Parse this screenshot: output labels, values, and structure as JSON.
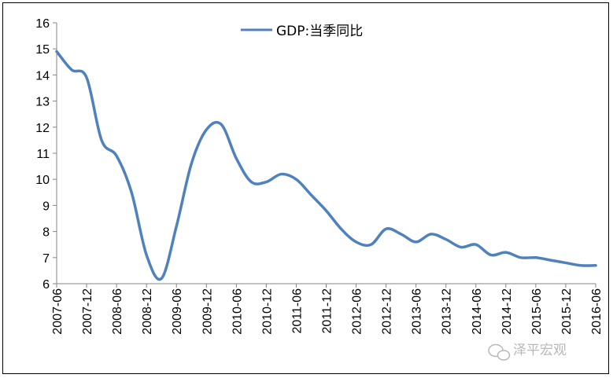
{
  "chart_data": {
    "type": "line",
    "title": "",
    "xlabel": "",
    "ylabel": "",
    "ylim": [
      6,
      16
    ],
    "yticks": [
      6,
      7,
      8,
      9,
      10,
      11,
      12,
      13,
      14,
      15,
      16
    ],
    "xtick_labels": [
      "2007-06",
      "2007-12",
      "2008-06",
      "2008-12",
      "2009-06",
      "2009-12",
      "2010-06",
      "2010-12",
      "2011-06",
      "2011-12",
      "2012-06",
      "2012-12",
      "2013-06",
      "2013-12",
      "2014-06",
      "2014-12",
      "2015-06",
      "2015-12",
      "2016-06"
    ],
    "grid": false,
    "legend_position": "top-center",
    "series": [
      {
        "name": "GDP:当季同比",
        "color": "#4f81bd",
        "x": [
          "2007-06",
          "2007-09",
          "2007-12",
          "2008-03",
          "2008-06",
          "2008-09",
          "2008-12",
          "2009-03",
          "2009-06",
          "2009-09",
          "2009-12",
          "2010-03",
          "2010-06",
          "2010-09",
          "2010-12",
          "2011-03",
          "2011-06",
          "2011-09",
          "2011-12",
          "2012-03",
          "2012-06",
          "2012-09",
          "2012-12",
          "2013-03",
          "2013-06",
          "2013-09",
          "2013-12",
          "2014-03",
          "2014-06",
          "2014-09",
          "2014-12",
          "2015-03",
          "2015-06",
          "2015-09",
          "2015-12",
          "2016-03",
          "2016-06"
        ],
        "values": [
          14.9,
          14.2,
          13.9,
          11.5,
          10.9,
          9.5,
          7.1,
          6.2,
          8.2,
          10.6,
          11.9,
          12.1,
          10.8,
          9.9,
          9.9,
          10.2,
          10.0,
          9.4,
          8.8,
          8.1,
          7.6,
          7.5,
          8.1,
          7.9,
          7.6,
          7.9,
          7.7,
          7.4,
          7.5,
          7.1,
          7.2,
          7.0,
          7.0,
          6.9,
          6.8,
          6.7,
          6.7
        ]
      }
    ]
  },
  "watermark": {
    "text": "泽平宏观",
    "icon": "wechat-icon"
  }
}
